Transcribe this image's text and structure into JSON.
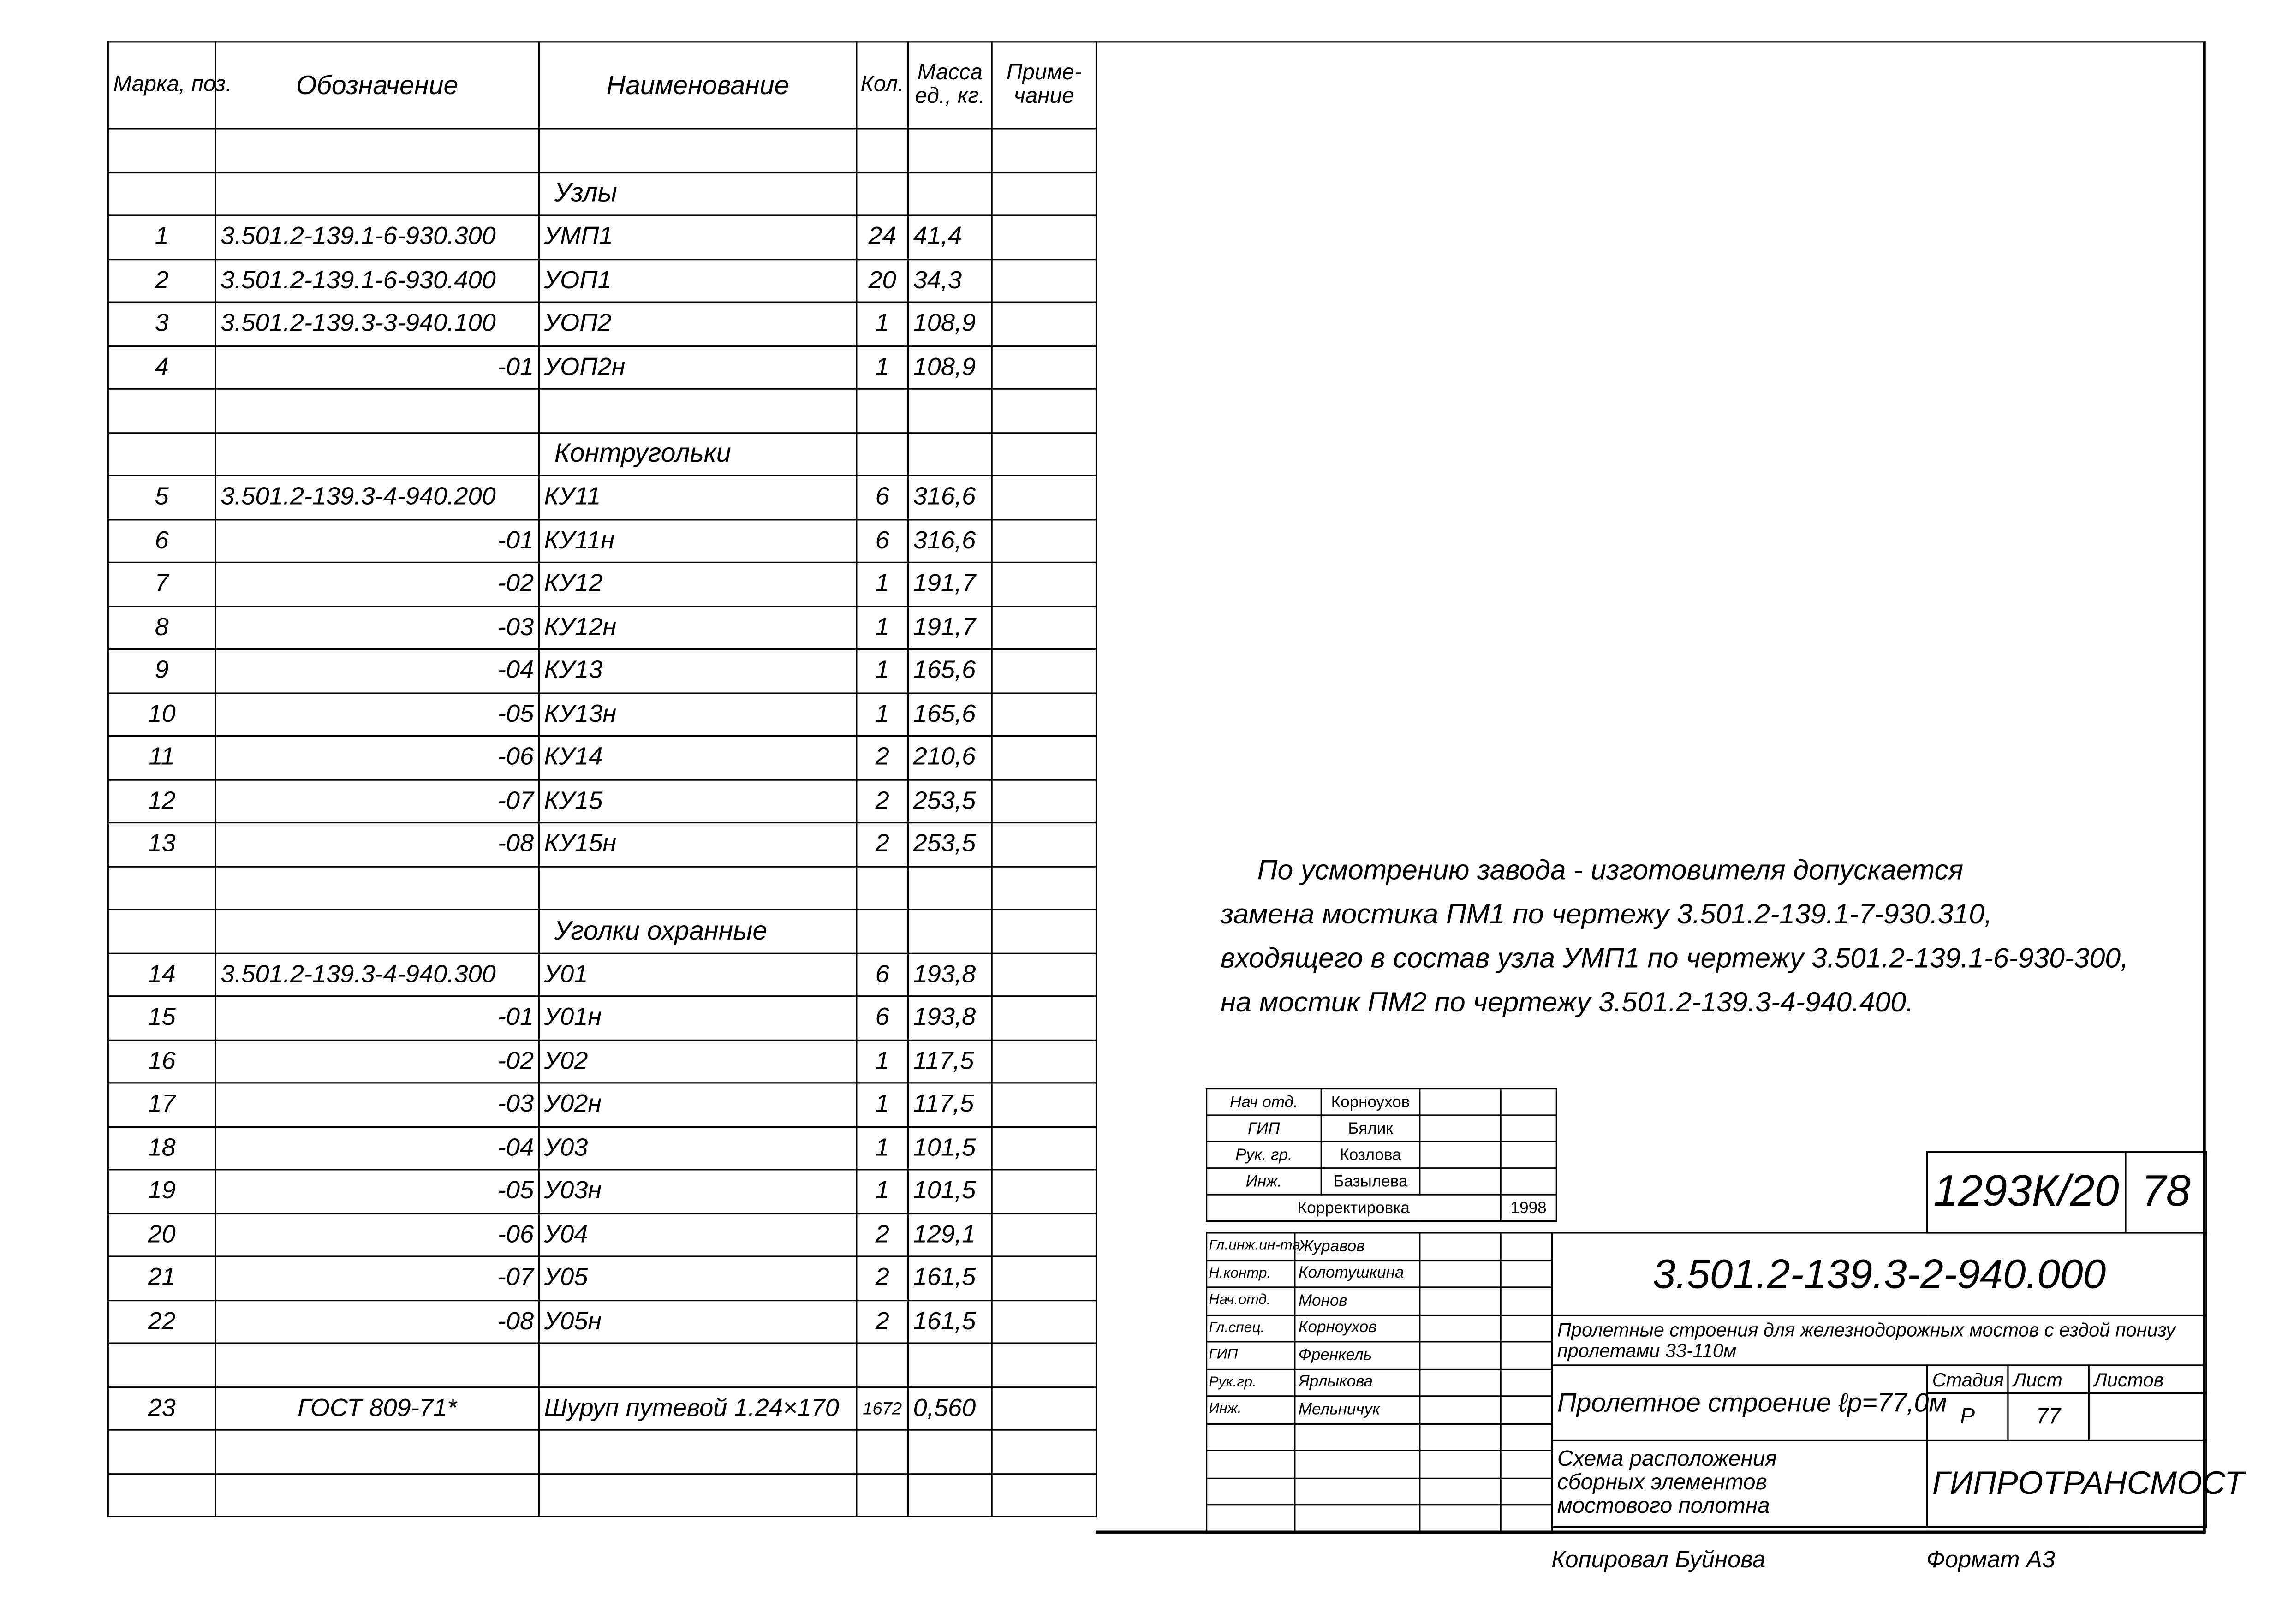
{
  "spec": {
    "headers": {
      "mark": "Марка, поз.",
      "designation": "Обозначение",
      "name": "Наименование",
      "qty": "Кол.",
      "mass": "Масса ед., кг.",
      "note": "Приме- чание"
    },
    "rows": [
      {
        "type": "blank"
      },
      {
        "type": "section",
        "name": "Узлы"
      },
      {
        "mark": "1",
        "designation": "3.501.2-139.1-6-930.300",
        "name": "УМП1",
        "qty": "24",
        "mass": "41,4"
      },
      {
        "mark": "2",
        "designation": "3.501.2-139.1-6-930.400",
        "name": "УОП1",
        "qty": "20",
        "mass": "34,3"
      },
      {
        "mark": "3",
        "designation": "3.501.2-139.3-3-940.100",
        "name": "УОП2",
        "qty": "1",
        "mass": "108,9"
      },
      {
        "mark": "4",
        "designation": "-01",
        "name": "УОП2н",
        "qty": "1",
        "mass": "108,9"
      },
      {
        "type": "blank"
      },
      {
        "type": "section",
        "name": "Контругольки"
      },
      {
        "mark": "5",
        "designation": "3.501.2-139.3-4-940.200",
        "name": "КУ11",
        "qty": "6",
        "mass": "316,6"
      },
      {
        "mark": "6",
        "designation": "-01",
        "name": "КУ11н",
        "qty": "6",
        "mass": "316,6"
      },
      {
        "mark": "7",
        "designation": "-02",
        "name": "КУ12",
        "qty": "1",
        "mass": "191,7"
      },
      {
        "mark": "8",
        "designation": "-03",
        "name": "КУ12н",
        "qty": "1",
        "mass": "191,7"
      },
      {
        "mark": "9",
        "designation": "-04",
        "name": "КУ13",
        "qty": "1",
        "mass": "165,6"
      },
      {
        "mark": "10",
        "designation": "-05",
        "name": "КУ13н",
        "qty": "1",
        "mass": "165,6"
      },
      {
        "mark": "11",
        "designation": "-06",
        "name": "КУ14",
        "qty": "2",
        "mass": "210,6"
      },
      {
        "mark": "12",
        "designation": "-07",
        "name": "КУ15",
        "qty": "2",
        "mass": "253,5"
      },
      {
        "mark": "13",
        "designation": "-08",
        "name": "КУ15н",
        "qty": "2",
        "mass": "253,5"
      },
      {
        "type": "blank"
      },
      {
        "type": "section",
        "name": "Уголки охранные"
      },
      {
        "mark": "14",
        "designation": "3.501.2-139.3-4-940.300",
        "name": "У01",
        "qty": "6",
        "mass": "193,8"
      },
      {
        "mark": "15",
        "designation": "-01",
        "name": "У01н",
        "qty": "6",
        "mass": "193,8"
      },
      {
        "mark": "16",
        "designation": "-02",
        "name": "У02",
        "qty": "1",
        "mass": "117,5"
      },
      {
        "mark": "17",
        "designation": "-03",
        "name": "У02н",
        "qty": "1",
        "mass": "117,5"
      },
      {
        "mark": "18",
        "designation": "-04",
        "name": "У03",
        "qty": "1",
        "mass": "101,5"
      },
      {
        "mark": "19",
        "designation": "-05",
        "name": "У03н",
        "qty": "1",
        "mass": "101,5"
      },
      {
        "mark": "20",
        "designation": "-06",
        "name": "У04",
        "qty": "2",
        "mass": "129,1"
      },
      {
        "mark": "21",
        "designation": "-07",
        "name": "У05",
        "qty": "2",
        "mass": "161,5"
      },
      {
        "mark": "22",
        "designation": "-08",
        "name": "У05н",
        "qty": "2",
        "mass": "161,5"
      },
      {
        "type": "blank"
      },
      {
        "mark": "23",
        "designation": "ГОСТ 809-71*",
        "name": "Шуруп путевой 1.24×170",
        "qty": "1672",
        "mass": "0,560",
        "center": true
      },
      {
        "type": "blank"
      },
      {
        "type": "blank"
      }
    ]
  },
  "notes": [
    "По усмотрению завода - изготовителя допускается",
    "замена мостика ПМ1 по чертежу 3.501.2-139.1-7-930.310,",
    "входящего в состав узла УМП1 по чертежу 3.501.2-139.1-6-930-300,",
    "на мостик ПМ2 по чертежу 3.501.2-139.3-4-940.400."
  ],
  "approval": {
    "rows": [
      {
        "role": "Нач отд.",
        "name": "Корноухов"
      },
      {
        "role": "ГИП",
        "name": "Бялик"
      },
      {
        "role": "Рук. гр.",
        "name": "Козлова"
      },
      {
        "role": "Инж.",
        "name": "Базылева"
      }
    ],
    "correction": "Корректировка",
    "year": "1998"
  },
  "signatures": [
    {
      "role": "Гл.инж.ин-та",
      "name": "Журавов"
    },
    {
      "role": "Н.контр.",
      "name": "Колотушкина"
    },
    {
      "role": "Нач.отд.",
      "name": "Монов"
    },
    {
      "role": "Гл.спец.",
      "name": "Корноухов"
    },
    {
      "role": "ГИП",
      "name": "Френкель"
    },
    {
      "role": "Рук.гр.",
      "name": "Ярлыкова"
    },
    {
      "role": "Инж.",
      "name": "Мельничук"
    }
  ],
  "title_block": {
    "archive_no": "1293К/20",
    "sheet_index": "78",
    "designation": "3.501.2-139.3-2-940.000",
    "project_title": "Пролетные строения для железнодорожных мостов с ездой понизу пролетами 33-110м",
    "object": "Пролетное строение ℓр=77,0м",
    "stage_label": "Стадия",
    "sheet_label": "Лист",
    "sheets_label": "Листов",
    "stage": "Р",
    "sheet": "77",
    "drawing_name": "Схема расположения сборных элементов мостового полотна",
    "organization": "ГИПРОТРАНСМОСТ"
  },
  "footer": {
    "copied": "Копировал Буйнова",
    "format": "Формат А3"
  }
}
